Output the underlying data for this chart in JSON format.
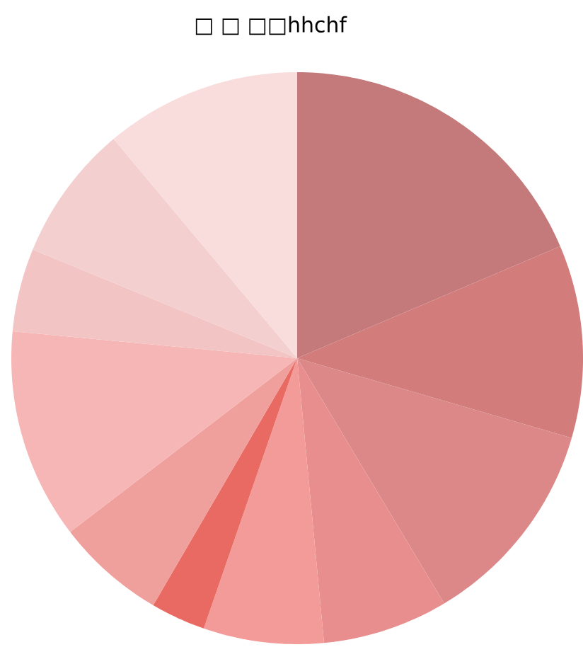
{
  "chart_data": {
    "type": "pie",
    "title": "□ □ □□hhchf",
    "categories": [
      null,
      null,
      null,
      null,
      null,
      null,
      null,
      null,
      null,
      null,
      null
    ],
    "values": [
      18.6,
      10.9,
      11.9,
      7.1,
      6.8,
      3.1,
      6.2,
      11.9,
      4.7,
      7.7,
      11.1
    ],
    "colors": [
      "#c47a7b",
      "#d27c7c",
      "#dd8888",
      "#e88e8e",
      "#f39b98",
      "#e96a62",
      "#ef9f9c",
      "#f6b6b6",
      "#f3c4c4",
      "#f3cfcf",
      "#f9dcdc"
    ]
  }
}
